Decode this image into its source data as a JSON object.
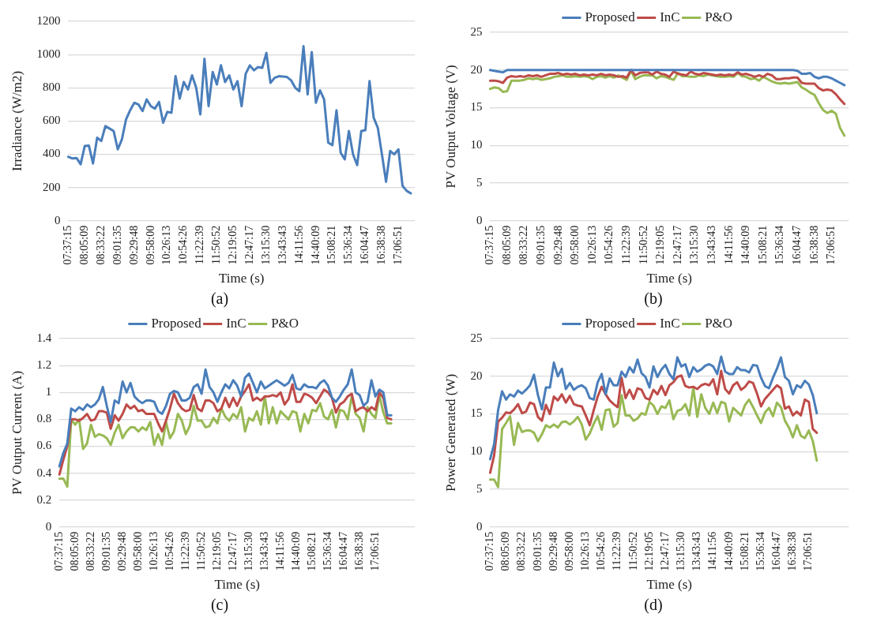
{
  "chart_data": [
    {
      "type": "line",
      "xlabel": "Time (s)",
      "ylabel": "Irradiance (W/m2)",
      "annotations": [
        "(a)"
      ],
      "grid": "y",
      "legend": false,
      "marker": "none",
      "line_style": "solid",
      "ylim": [
        0,
        1200
      ],
      "yticks": [
        0,
        200,
        400,
        600,
        800,
        1000,
        1200
      ],
      "categories": [
        "07:37:15",
        null,
        null,
        null,
        "08:05:09",
        null,
        null,
        null,
        "08:33:22",
        null,
        null,
        null,
        "09:01:35",
        null,
        null,
        null,
        "09:29:48",
        null,
        null,
        null,
        "09:58:00",
        null,
        null,
        null,
        "10:26:13",
        null,
        null,
        null,
        "10:54:26",
        null,
        null,
        null,
        "11:22:39",
        null,
        null,
        null,
        "11:50:52",
        null,
        null,
        null,
        "12:19:05",
        null,
        null,
        null,
        "12:47:17",
        null,
        null,
        null,
        "13:15:30",
        null,
        null,
        null,
        "13:43:43",
        null,
        null,
        null,
        "14:11:56",
        null,
        null,
        null,
        "14:40:09",
        null,
        null,
        null,
        "15:08:21",
        null,
        null,
        null,
        "15:36:34",
        null,
        null,
        null,
        "16:04:47",
        null,
        null,
        null,
        "16:38:38",
        null,
        null,
        null,
        "17:06:51",
        null,
        null,
        null,
        null
      ],
      "series": [
        {
          "color": "#4a7ebb",
          "values": [
            385,
            375,
            378,
            340,
            450,
            452,
            345,
            500,
            480,
            570,
            555,
            540,
            430,
            490,
            610,
            665,
            710,
            700,
            660,
            730,
            690,
            675,
            715,
            590,
            655,
            650,
            870,
            735,
            835,
            790,
            875,
            800,
            640,
            975,
            690,
            895,
            820,
            935,
            835,
            875,
            790,
            840,
            690,
            885,
            935,
            905,
            925,
            920,
            1010,
            830,
            860,
            870,
            868,
            865,
            845,
            800,
            780,
            1050,
            760,
            1015,
            710,
            785,
            730,
            470,
            455,
            665,
            410,
            370,
            540,
            400,
            335,
            540,
            545,
            840,
            620,
            560,
            400,
            235,
            420,
            400,
            430,
            210,
            180,
            165,
            null
          ]
        }
      ]
    },
    {
      "type": "line",
      "xlabel": "Time (s)",
      "ylabel": "PV Output Voltage (V)",
      "annotations": [
        "(b)"
      ],
      "grid": "y",
      "legend": "top",
      "marker": "none",
      "line_style": "solid",
      "ylim": [
        0,
        25
      ],
      "yticks": [
        0,
        5,
        10,
        15,
        20,
        25
      ],
      "categories": [
        "07:37:15",
        null,
        null,
        null,
        "08:05:09",
        null,
        null,
        null,
        "08:33:22",
        null,
        null,
        null,
        "09:01:35",
        null,
        null,
        null,
        "09:29:48",
        null,
        null,
        null,
        "09:58:00",
        null,
        null,
        null,
        "10:26:13",
        null,
        null,
        null,
        "10:54:26",
        null,
        null,
        null,
        "11:22:39",
        null,
        null,
        null,
        "11:50:52",
        null,
        null,
        null,
        "12:19:05",
        null,
        null,
        null,
        "12:47:17",
        null,
        null,
        null,
        "13:15:30",
        null,
        null,
        null,
        "13:43:43",
        null,
        null,
        null,
        "14:11:56",
        null,
        null,
        null,
        "14:40:09",
        null,
        null,
        null,
        "15:08:21",
        null,
        null,
        null,
        "15:36:34",
        null,
        null,
        null,
        "16:04:47",
        null,
        null,
        null,
        "16:38:38",
        null,
        null,
        null,
        "17:06:51",
        null,
        null,
        null,
        null
      ],
      "series": [
        {
          "name": "Proposed",
          "color": "#4a7ebb",
          "values": [
            20,
            19.9,
            19.8,
            19.7,
            20,
            20,
            20,
            20,
            20,
            20,
            20,
            20,
            20,
            20,
            20,
            20,
            20,
            20,
            20,
            20,
            20,
            20,
            20,
            20,
            20,
            20,
            20,
            20,
            20,
            20,
            20,
            20,
            20,
            20,
            20,
            20,
            20,
            20,
            20,
            20,
            20,
            20,
            20,
            20,
            20,
            20,
            20,
            20,
            20,
            20,
            20,
            20,
            20,
            20,
            20,
            20,
            20,
            20,
            20,
            20,
            20,
            20,
            20,
            20,
            20,
            20,
            20,
            20,
            20,
            20,
            20,
            20,
            19.9,
            19.5,
            19.5,
            19.6,
            19.1,
            18.9,
            19.1,
            19.1,
            18.9,
            18.6,
            18.3,
            18,
            null
          ]
        },
        {
          "name": "InC",
          "color": "#be4b48",
          "values": [
            18.6,
            18.6,
            18.5,
            18.3,
            19,
            19.2,
            19.1,
            19.2,
            19.1,
            19.3,
            19.2,
            19.3,
            19.1,
            19.3,
            19.5,
            19.5,
            19.6,
            19.4,
            19.5,
            19.4,
            19.5,
            19.3,
            19.4,
            19.3,
            19.4,
            19.3,
            19.5,
            19.3,
            19.4,
            19.3,
            19.1,
            19.2,
            19,
            20,
            19.3,
            19.6,
            19.7,
            19.7,
            19.4,
            19.8,
            19.5,
            19.4,
            19.1,
            19.8,
            19.5,
            19.4,
            19.3,
            19.8,
            19.5,
            19.4,
            19.6,
            19.5,
            19.4,
            19.3,
            19.4,
            19.3,
            19.4,
            19.3,
            19.7,
            19.4,
            19.5,
            19.3,
            19.1,
            19.3,
            19.1,
            19.5,
            19.3,
            18.8,
            18.8,
            18.9,
            18.9,
            19,
            19,
            18.3,
            18.2,
            18.2,
            18.2,
            17.6,
            17.3,
            17.4,
            17.3,
            16.8,
            16.1,
            15.5,
            null
          ]
        },
        {
          "name": "P&O",
          "color": "#98b954",
          "values": [
            17.5,
            17.7,
            17.6,
            17.1,
            17.2,
            18.6,
            18.6,
            18.6,
            18.7,
            18.9,
            18.8,
            18.9,
            18.7,
            18.8,
            18.9,
            19.1,
            19.2,
            19.3,
            19.1,
            19.1,
            19.2,
            19.1,
            19.2,
            19.1,
            18.8,
            19.1,
            19.2,
            19,
            19.2,
            19,
            19.3,
            19,
            18.7,
            19.9,
            18.8,
            19.1,
            19.3,
            19.3,
            19.3,
            18.9,
            19.2,
            19.1,
            18.9,
            18.7,
            19.6,
            19.2,
            19.2,
            19.1,
            19.1,
            19.3,
            19.2,
            19.4,
            19.3,
            19.2,
            19.1,
            19.1,
            19.2,
            19.1,
            19.6,
            19.2,
            19.1,
            18.8,
            18.9,
            18.6,
            19.1,
            18.8,
            18.5,
            18.3,
            18.2,
            18.3,
            18.2,
            18.3,
            18.4,
            17.7,
            17.4,
            17,
            16.7,
            15.6,
            14.7,
            14.3,
            14.6,
            14.2,
            12.3,
            11.3,
            null
          ]
        }
      ]
    },
    {
      "type": "line",
      "xlabel": "Time (s)",
      "ylabel": "PV Output Current (A)",
      "annotations": [
        "(c)"
      ],
      "grid": "y",
      "legend": "top",
      "marker": "none",
      "line_style": "solid",
      "ylim": [
        0,
        1.4
      ],
      "yticks": [
        0,
        0.2,
        0.4,
        0.6,
        0.8,
        1,
        1.2,
        1.4
      ],
      "categories": [
        "07:37:15",
        null,
        null,
        null,
        "08:05:09",
        null,
        null,
        null,
        "08:33:22",
        null,
        null,
        null,
        "09:01:35",
        null,
        null,
        null,
        "09:29:48",
        null,
        null,
        null,
        "09:58:00",
        null,
        null,
        null,
        "10:26:13",
        null,
        null,
        null,
        "10:54:26",
        null,
        null,
        null,
        "11:22:39",
        null,
        null,
        null,
        "11:50:52",
        null,
        null,
        null,
        "12:19:05",
        null,
        null,
        null,
        "12:47:17",
        null,
        null,
        null,
        "13:15:30",
        null,
        null,
        null,
        "13:43:43",
        null,
        null,
        null,
        "14:11:56",
        null,
        null,
        null,
        "14:40:09",
        null,
        null,
        null,
        "15:08:21",
        null,
        null,
        null,
        "15:36:34",
        null,
        null,
        null,
        "16:04:47",
        null,
        null,
        null,
        "16:38:38",
        null,
        null,
        null,
        "17:06:51",
        null,
        null,
        null,
        null,
        null,
        null,
        null,
        null,
        null,
        null
      ],
      "series": [
        {
          "name": "Proposed",
          "color": "#4a7ebb",
          "values": [
            0.45,
            0.55,
            0.62,
            0.88,
            0.86,
            0.89,
            0.87,
            0.91,
            0.89,
            0.91,
            0.95,
            1.04,
            0.9,
            0.78,
            0.94,
            0.92,
            1.08,
            1,
            1.07,
            0.97,
            0.94,
            0.92,
            0.94,
            0.94,
            0.93,
            0.86,
            0.84,
            0.9,
            0.99,
            1.01,
            1,
            0.94,
            0.94,
            0.96,
            1.04,
            1.06,
            0.99,
            1.17,
            1.04,
            1,
            0.93,
            1,
            1.06,
            1.03,
            1.09,
            1.05,
            0.97,
            1.11,
            1.14,
            1.07,
            1,
            1.08,
            1.03,
            1.05,
            1.07,
            1.09,
            1.07,
            1.05,
            1.07,
            1.13,
            1.03,
            1.02,
            1.06,
            1.04,
            1.04,
            1.03,
            1.07,
            1.09,
            1.05,
            0.96,
            0.93,
            0.97,
            1.02,
            1.06,
            1.17,
            1,
            0.98,
            0.9,
            0.93,
            1.09,
            0.97,
            1.02,
            1,
            0.83,
            0.83,
            null,
            null,
            null,
            null,
            null,
            null
          ]
        },
        {
          "name": "InC",
          "color": "#be4b48",
          "values": [
            0.39,
            0.5,
            0.6,
            0.8,
            0.8,
            0.79,
            0.81,
            0.84,
            0.79,
            0.8,
            0.86,
            0.86,
            0.85,
            0.73,
            0.83,
            0.79,
            0.84,
            0.91,
            0.88,
            0.9,
            0.86,
            0.87,
            0.84,
            0.84,
            0.84,
            0.77,
            0.71,
            0.79,
            0.88,
            0.99,
            0.92,
            0.88,
            0.86,
            0.87,
            0.98,
            0.88,
            0.86,
            0.94,
            0.94,
            0.92,
            0.86,
            0.88,
            0.96,
            0.89,
            0.96,
            0.9,
            0.97,
            1.01,
            1.06,
            0.94,
            0.96,
            0.94,
            0.97,
            0.97,
            0.98,
            0.97,
            1,
            0.91,
            0.95,
            1.06,
            0.93,
            0.93,
            0.99,
            0.98,
            0.96,
            0.92,
            0.97,
            1.02,
            1,
            0.96,
            0.85,
            0.91,
            0.93,
            0.97,
            0.99,
            0.86,
            0.88,
            0.89,
            0.86,
            0.89,
            0.87,
            1,
            0.96,
            0.81,
            0.8,
            null,
            null,
            null,
            null,
            null,
            null
          ]
        },
        {
          "name": "P&O",
          "color": "#98b954",
          "values": [
            0.36,
            0.36,
            0.3,
            0.8,
            0.76,
            0.8,
            0.58,
            0.62,
            0.76,
            0.67,
            0.69,
            0.68,
            0.66,
            0.61,
            0.7,
            0.76,
            0.66,
            0.71,
            0.74,
            0.74,
            0.71,
            0.74,
            0.72,
            0.78,
            0.61,
            0.69,
            0.61,
            0.78,
            0.66,
            0.71,
            0.84,
            0.79,
            0.69,
            0.75,
            0.9,
            0.79,
            0.79,
            0.74,
            0.75,
            0.81,
            0.77,
            0.88,
            0.82,
            0.79,
            0.84,
            0.81,
            0.89,
            0.71,
            0.81,
            0.79,
            0.86,
            0.76,
            0.97,
            0.77,
            0.89,
            0.77,
            0.86,
            0.83,
            0.8,
            0.86,
            0.85,
            0.71,
            0.84,
            0.77,
            0.87,
            0.86,
            0.92,
            0.82,
            0.8,
            0.87,
            0.74,
            0.87,
            0.86,
            0.8,
            0.97,
            0.84,
            0.81,
            0.71,
            0.89,
            0.84,
            0.81,
            0.98,
            0.85,
            0.77,
            0.77,
            null,
            null,
            null,
            null,
            null,
            null
          ]
        }
      ]
    },
    {
      "type": "line",
      "xlabel": "Time (s)",
      "ylabel": "Power Generated (W)",
      "annotations": [
        "(d)"
      ],
      "grid": "y",
      "legend": "top",
      "marker": "none",
      "line_style": "solid",
      "ylim": [
        0,
        25
      ],
      "yticks": [
        0,
        5,
        10,
        15,
        20,
        25
      ],
      "categories": [
        "07:37:15",
        null,
        null,
        null,
        "08:05:09",
        null,
        null,
        null,
        "08:33:22",
        null,
        null,
        null,
        "09:01:35",
        null,
        null,
        null,
        "09:29:48",
        null,
        null,
        null,
        "09:58:00",
        null,
        null,
        null,
        "10:26:13",
        null,
        null,
        null,
        "10:54:26",
        null,
        null,
        null,
        "11:22:39",
        null,
        null,
        null,
        "11:50:52",
        null,
        null,
        null,
        "12:19:05",
        null,
        null,
        null,
        "12:47:17",
        null,
        null,
        null,
        "13:15:30",
        null,
        null,
        null,
        "13:43:43",
        null,
        null,
        null,
        "14:11:56",
        null,
        null,
        null,
        "14:40:09",
        null,
        null,
        null,
        "15:08:21",
        null,
        null,
        null,
        "15:36:34",
        null,
        null,
        null,
        "16:04:47",
        null,
        null,
        null,
        "16:38:38",
        null,
        null,
        null,
        "17:06:51",
        null,
        null,
        null,
        null,
        null,
        null,
        null,
        null,
        null,
        null
      ],
      "series": [
        {
          "name": "Proposed",
          "color": "#4a7ebb",
          "values": [
            9,
            11,
            15.5,
            18,
            16.9,
            17.6,
            17.3,
            18.1,
            17.7,
            18.2,
            18.8,
            20.2,
            17.5,
            15.6,
            18.5,
            18.5,
            21.8,
            20,
            21,
            18.3,
            19.1,
            18.2,
            18.6,
            18.8,
            18.4,
            17.1,
            16.9,
            19.2,
            20.3,
            17.6,
            19.7,
            18.8,
            18.8,
            20.6,
            19.9,
            21.2,
            20.5,
            22.2,
            20.4,
            19.9,
            18.5,
            21.3,
            19.9,
            20.9,
            21.5,
            20.3,
            19.6,
            22.5,
            21.3,
            21.6,
            19.9,
            21.2,
            20.6,
            20.9,
            21.4,
            21.6,
            21.3,
            20.3,
            22.6,
            20.6,
            20.3,
            20.3,
            21.2,
            20.8,
            20.8,
            20.5,
            21.5,
            21.4,
            19.8,
            18.7,
            18.4,
            19.8,
            21,
            22.5,
            19.9,
            19.4,
            17.6,
            18.8,
            18.5,
            19.4,
            18.9,
            17.5,
            15.1,
            null,
            null,
            null,
            null,
            null,
            null,
            null,
            null
          ]
        },
        {
          "name": "InC",
          "color": "#be4b48",
          "values": [
            7.2,
            9.5,
            14,
            14.5,
            15.2,
            15.1,
            15.6,
            16.3,
            15.1,
            15.3,
            16.5,
            16.3,
            14.6,
            14.1,
            16.2,
            15,
            17.3,
            16.8,
            17.6,
            16.5,
            17.4,
            16.3,
            16.1,
            16,
            14.8,
            13.5,
            15.5,
            17.3,
            18.6,
            17.6,
            16.8,
            16.3,
            15.9,
            19.8,
            17.1,
            18.2,
            17,
            18.4,
            18.2,
            17.1,
            16.9,
            18.2,
            17.6,
            18.7,
            17.5,
            18.8,
            19.2,
            19.9,
            20.1,
            18.7,
            18.5,
            18.6,
            18.3,
            18.8,
            19,
            18.8,
            19.6,
            17.6,
            20.7,
            18.3,
            17.7,
            18.8,
            19.2,
            18.2,
            18.6,
            19.3,
            19.1,
            17.7,
            16,
            17,
            17.6,
            18.2,
            18.8,
            18.4,
            15.7,
            16,
            14.8,
            15.3,
            14.8,
            16.9,
            16.6,
            13,
            12.5,
            null,
            null,
            null,
            null,
            null,
            null,
            null,
            null
          ]
        },
        {
          "name": "P&O",
          "color": "#98b954",
          "values": [
            6.3,
            6.3,
            5.3,
            13,
            13.8,
            14.7,
            10.9,
            13.8,
            12.6,
            12.8,
            12.8,
            12.5,
            11.4,
            12.3,
            13.5,
            13.2,
            13.6,
            13.2,
            13.9,
            14,
            13.6,
            14,
            14.6,
            13.6,
            11.6,
            12.4,
            13.7,
            14.7,
            12.9,
            15.5,
            15.6,
            13.3,
            13.8,
            17.5,
            14.8,
            14.8,
            14.1,
            14.4,
            15.1,
            14.9,
            16.6,
            16.1,
            15,
            16,
            15.8,
            16.8,
            14.3,
            15.4,
            15.6,
            16.3,
            14.8,
            18.5,
            14.6,
            17.6,
            15.8,
            15,
            16.5,
            15.1,
            16.6,
            16.4,
            14,
            15.8,
            15.3,
            14.8,
            16.2,
            16.9,
            15.9,
            14.8,
            13.8,
            15.2,
            15.8,
            14.7,
            16.5,
            15.9,
            14.1,
            13.2,
            11.9,
            13.5,
            12.1,
            11.8,
            12.8,
            11.4,
            8.8,
            null,
            null,
            null,
            null,
            null,
            null,
            null,
            null
          ]
        }
      ]
    }
  ]
}
